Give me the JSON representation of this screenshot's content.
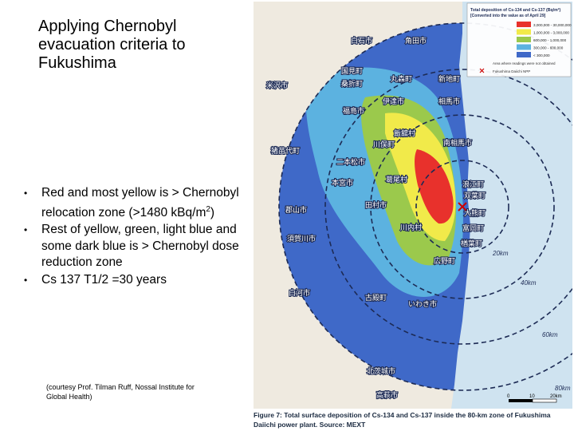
{
  "slide": {
    "title": "Applying Chernobyl evacuation criteria to Fukushima",
    "bullets": [
      {
        "text": "Red and most yellow is > Chernobyl relocation zone (>1480 kBq/m",
        "sup": "2",
        "suffix": ")"
      },
      {
        "text": "Rest of yellow, green, light blue and some dark blue is > Chernobyl dose reduction zone",
        "sup": "",
        "suffix": ""
      },
      {
        "text": "Cs 137 T1/2 =30 years",
        "sup": "",
        "suffix": ""
      }
    ],
    "bullet_glyph": "•",
    "credit": "(courtesy Prof. Tilman Ruff, Nossal Institute for Global Health)"
  },
  "map": {
    "legend_title": "Total deposition of Cs-134 and Cs-137 (Bq/m²)",
    "legend_subtitle": "[Converted into the value as of April 29]",
    "legend_items": [
      {
        "label": "3,000,000 - 30,000,000",
        "color": "#e8312c"
      },
      {
        "label": "1,000,000 - 3,000,000",
        "color": "#f1ea4a"
      },
      {
        "label": "600,000 - 1,000,000",
        "color": "#9bc94c"
      },
      {
        "label": "300,000 - 600,000",
        "color": "#5cb2e0"
      },
      {
        "label": "< 300,000",
        "color": "#3f69c8"
      }
    ],
    "legend_note": "Area where readings were not obtained",
    "legend_plant": "Fukushima Daiichi NPP",
    "ring_labels": [
      "20km",
      "40km",
      "60km",
      "80km"
    ],
    "scale_labels": [
      "0",
      "10",
      "20km"
    ],
    "place_names": [
      "白石市",
      "角田市",
      "丸森町",
      "相馬市",
      "新地町",
      "伊達市",
      "国見町",
      "桑折町",
      "米沢市",
      "福島市",
      "飯舘村",
      "南相馬市",
      "川俣町",
      "二本松市",
      "猪苗代町",
      "本宮市",
      "葛尾村",
      "浪江町",
      "双葉町",
      "大熊町",
      "郡山市",
      "田村市",
      "川内村",
      "富岡町",
      "楢葉町",
      "須賀川市",
      "広野町",
      "白河市",
      "古殿町",
      "いわき市",
      "北茨城市",
      "高萩市"
    ],
    "caption": "Figure 7: Total surface deposition of Cs-134 and Cs-137 inside the 80-km zone of Fukushima Daiichi power plant. Source: MEXT"
  },
  "colors": {
    "red": "#e8312c",
    "yellow": "#f1ea4a",
    "green": "#9bc94c",
    "light_blue": "#5cb2e0",
    "dark_blue": "#3f69c8",
    "sea": "#b8d8ec"
  }
}
